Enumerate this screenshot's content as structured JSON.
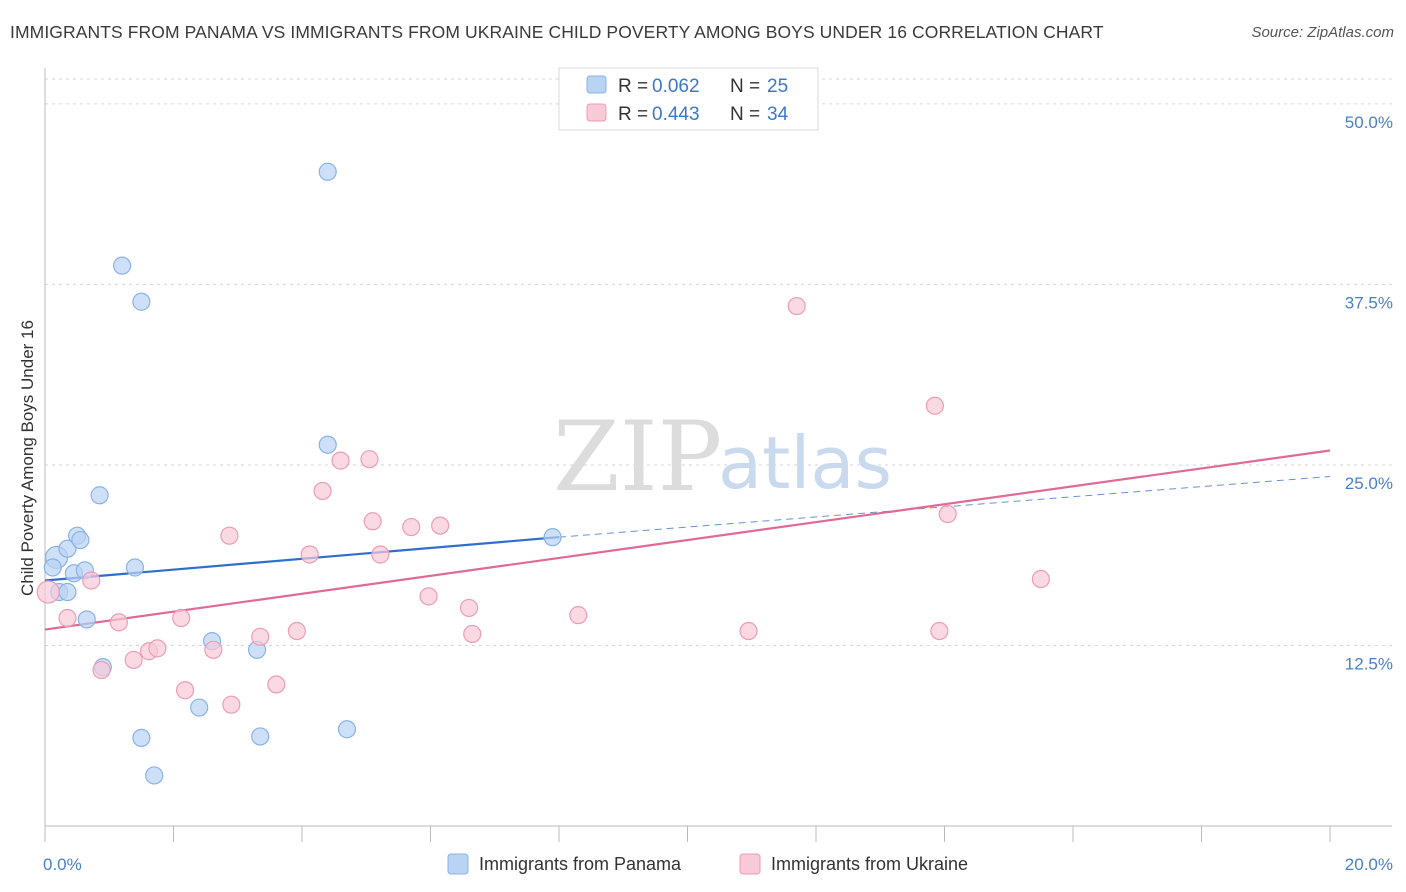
{
  "title": "IMMIGRANTS FROM PANAMA VS IMMIGRANTS FROM UKRAINE CHILD POVERTY AMONG BOYS UNDER 16 CORRELATION CHART",
  "source": "Source: ZipAtlas.com",
  "watermark": {
    "zip": "ZIP",
    "atlas": "atlas"
  },
  "colors": {
    "panama_fill": "#b9d3f3",
    "panama_stroke": "#8ab3e6",
    "panama_line": "#2f6fcb",
    "ukraine_fill": "#f8c9d7",
    "ukraine_stroke": "#ee9bb6",
    "ukraine_line": "#e06a95",
    "tick_text": "#4a7fc8"
  },
  "legend": {
    "r_label": "R =",
    "n_label": "N =",
    "panama": {
      "r": "0.062",
      "n": "25"
    },
    "ukraine": {
      "r": "0.443",
      "n": "34"
    }
  },
  "chart_data": {
    "type": "scatter",
    "xlabel": "",
    "ylabel": "Child Poverty Among Boys Under 16",
    "xlim": [
      0,
      20
    ],
    "ylim": [
      0,
      52
    ],
    "x_tick_labels": [
      {
        "v": 0,
        "label": "0.0%"
      },
      {
        "v": 20,
        "label": "20.0%"
      }
    ],
    "y_tick_labels": [
      {
        "v": 12.5,
        "label": "12.5%"
      },
      {
        "v": 25,
        "label": "25.0%"
      },
      {
        "v": 37.5,
        "label": "37.5%"
      },
      {
        "v": 50,
        "label": "50.0%"
      }
    ],
    "series": [
      {
        "name": "Immigrants from Panama",
        "points": [
          [
            0.18,
            18.6
          ],
          [
            0.12,
            17.9
          ],
          [
            0.35,
            19.2
          ],
          [
            0.5,
            20.1
          ],
          [
            0.55,
            19.8
          ],
          [
            0.22,
            16.2
          ],
          [
            0.45,
            17.5
          ],
          [
            0.62,
            17.7
          ],
          [
            0.35,
            16.2
          ],
          [
            1.4,
            17.9
          ],
          [
            0.85,
            22.9
          ],
          [
            1.2,
            38.8
          ],
          [
            1.5,
            36.3
          ],
          [
            4.4,
            45.3
          ],
          [
            4.4,
            26.4
          ],
          [
            0.65,
            14.3
          ],
          [
            0.9,
            11.0
          ],
          [
            2.6,
            12.8
          ],
          [
            3.3,
            12.2
          ],
          [
            2.4,
            8.2
          ],
          [
            1.5,
            6.1
          ],
          [
            3.35,
            6.2
          ],
          [
            4.7,
            6.7
          ],
          [
            1.7,
            3.5
          ],
          [
            7.9,
            20.0
          ]
        ],
        "trend": {
          "x0": 0,
          "y0": 17.0,
          "x1": 8.0,
          "y1": 20.0,
          "dash_to_x": 20,
          "dash_to_y": 24.2
        }
      },
      {
        "name": "Immigrants from Ukraine",
        "points": [
          [
            0.05,
            16.2
          ],
          [
            0.35,
            14.4
          ],
          [
            0.72,
            17.0
          ],
          [
            1.15,
            14.1
          ],
          [
            1.38,
            11.5
          ],
          [
            1.62,
            12.1
          ],
          [
            1.75,
            12.3
          ],
          [
            2.12,
            14.4
          ],
          [
            0.88,
            10.8
          ],
          [
            2.18,
            9.4
          ],
          [
            2.62,
            12.2
          ],
          [
            2.9,
            8.4
          ],
          [
            2.87,
            20.1
          ],
          [
            3.35,
            13.1
          ],
          [
            3.6,
            9.8
          ],
          [
            3.92,
            13.5
          ],
          [
            4.12,
            18.8
          ],
          [
            4.32,
            23.2
          ],
          [
            4.6,
            25.3
          ],
          [
            5.1,
            21.1
          ],
          [
            5.05,
            25.4
          ],
          [
            5.22,
            18.8
          ],
          [
            5.7,
            20.7
          ],
          [
            5.97,
            15.9
          ],
          [
            6.15,
            20.8
          ],
          [
            6.6,
            15.1
          ],
          [
            6.65,
            13.3
          ],
          [
            8.3,
            14.6
          ],
          [
            10.95,
            13.5
          ],
          [
            11.7,
            36.0
          ],
          [
            13.85,
            29.1
          ],
          [
            13.92,
            13.5
          ],
          [
            14.05,
            21.6
          ],
          [
            15.5,
            17.1
          ]
        ],
        "trend": {
          "x0": 0,
          "y0": 13.6,
          "x1": 20,
          "y1": 26.0
        }
      }
    ]
  }
}
